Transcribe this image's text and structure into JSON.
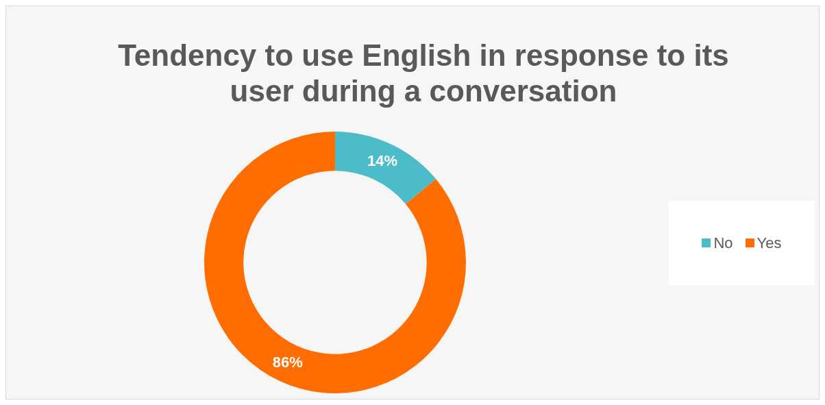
{
  "chart_data": {
    "type": "donut",
    "title": "Tendency to use English in response to its user during a conversation",
    "categories": [
      "No",
      "Yes"
    ],
    "values": [
      14,
      86
    ],
    "colors": [
      "#4bbcc8",
      "#ff6d00"
    ],
    "value_labels": [
      "14%",
      "86%"
    ],
    "legend": "right"
  }
}
